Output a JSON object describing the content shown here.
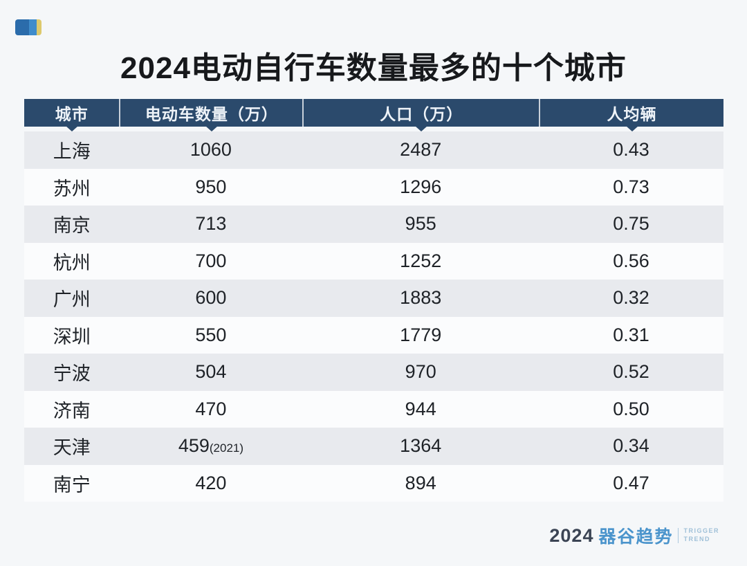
{
  "page": {
    "background": "#f5f7f9"
  },
  "header": {
    "corner_icon": "brand-color-chip"
  },
  "chart_data": {
    "type": "table",
    "title": "2024电动自行车数量最多的十个城市",
    "columns": [
      {
        "label": "城市"
      },
      {
        "label": "电动车数量（万）"
      },
      {
        "label": "人口（万）"
      },
      {
        "label": "人均辆"
      }
    ],
    "rows": [
      {
        "city": "上海",
        "ebikes": "1060",
        "ebikes_note": "",
        "population": "2487",
        "per_capita": "0.43"
      },
      {
        "city": "苏州",
        "ebikes": "950",
        "ebikes_note": "",
        "population": "1296",
        "per_capita": "0.73"
      },
      {
        "city": "南京",
        "ebikes": "713",
        "ebikes_note": "",
        "population": "955",
        "per_capita": "0.75"
      },
      {
        "city": "杭州",
        "ebikes": "700",
        "ebikes_note": "",
        "population": "1252",
        "per_capita": "0.56"
      },
      {
        "city": "广州",
        "ebikes": "600",
        "ebikes_note": "",
        "population": "1883",
        "per_capita": "0.32"
      },
      {
        "city": "深圳",
        "ebikes": "550",
        "ebikes_note": "",
        "population": "1779",
        "per_capita": "0.31"
      },
      {
        "city": "宁波",
        "ebikes": "504",
        "ebikes_note": "",
        "population": "970",
        "per_capita": "0.52"
      },
      {
        "city": "济南",
        "ebikes": "470",
        "ebikes_note": "",
        "population": "944",
        "per_capita": "0.50"
      },
      {
        "city": "天津",
        "ebikes": "459",
        "ebikes_note": "(2021)",
        "population": "1364",
        "per_capita": "0.34"
      },
      {
        "city": "南宁",
        "ebikes": "420",
        "ebikes_note": "",
        "population": "894",
        "per_capita": "0.47"
      }
    ],
    "layout": {
      "striped_rows": true,
      "header_background": "#2b4a6c",
      "stripe_color": "#e8eaee"
    }
  },
  "footer": {
    "logo_year": "2024",
    "logo_brand_cn": "器谷趋势",
    "logo_brand_en_line1": "TRIGGER",
    "logo_brand_en_line2": "TREND"
  },
  "colors": {
    "header_bg": "#2b4a6c",
    "row_stripe": "#e8eaee",
    "row_plain": "#fbfcfd",
    "accent_blue": "#4b94cc",
    "chip_yellow": "#ddc96c",
    "title_text": "#17191c"
  }
}
